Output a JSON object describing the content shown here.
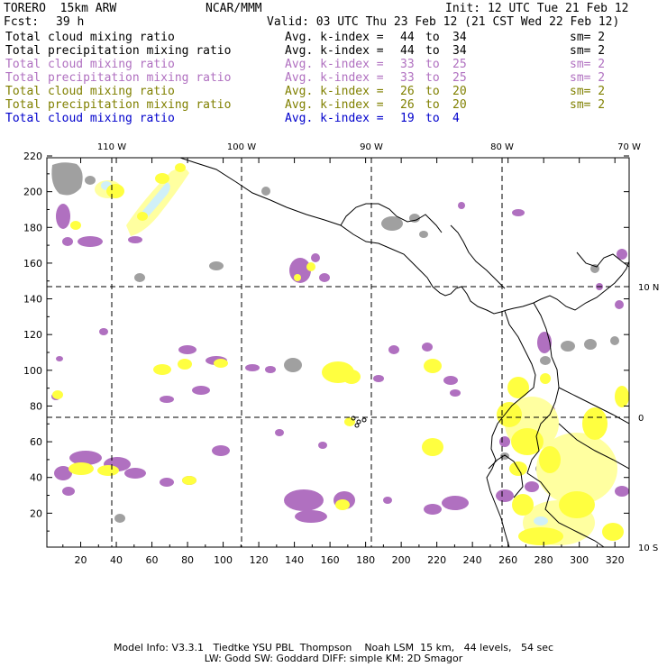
{
  "header": {
    "model": "TORERO  15km ARW",
    "center": "NCAR/MMM",
    "init": "Init: 12 UTC Tue 21 Feb 12",
    "fcst_label": "Fcst:",
    "fcst_value": "39 h",
    "valid": "Valid: 03 UTC Thu 23 Feb 12 (21 CST Wed 22 Feb 12)"
  },
  "legend": [
    {
      "name": "Total cloud mixing ratio",
      "avg": "Avg. k-index =",
      "from": "44",
      "to": "to",
      "end": "34",
      "sm": "sm= 2",
      "color": "#000000"
    },
    {
      "name": "Total precipitation mixing ratio",
      "avg": "Avg. k-index =",
      "from": "44",
      "to": "to",
      "end": "34",
      "sm": "sm= 2",
      "color": "#000000"
    },
    {
      "name": "Total cloud mixing ratio",
      "avg": "Avg. k-index =",
      "from": "33",
      "to": "to",
      "end": "25",
      "sm": "sm= 2",
      "color": "#b070c0"
    },
    {
      "name": "Total precipitation mixing ratio",
      "avg": "Avg. k-index =",
      "from": "33",
      "to": "to",
      "end": "25",
      "sm": "sm= 2",
      "color": "#b070c0"
    },
    {
      "name": "Total cloud mixing ratio",
      "avg": "Avg. k-index =",
      "from": "26",
      "to": "to",
      "end": "20",
      "sm": "sm= 2",
      "color": "#808000"
    },
    {
      "name": "Total precipitation mixing ratio",
      "avg": "Avg. k-index =",
      "from": "26",
      "to": "to",
      "end": "20",
      "sm": "sm= 2",
      "color": "#808000"
    },
    {
      "name": "Total cloud mixing ratio",
      "avg": "Avg. k-index =",
      "from": "19",
      "to": "to",
      "end": "4",
      "sm": "",
      "color": "#0000cc"
    }
  ],
  "map": {
    "lon_labels": [
      "110 W",
      "100 W",
      "90 W",
      "80 W",
      "70 W"
    ],
    "lat_labels": [
      "10 N",
      "0",
      "10 S"
    ],
    "x_ticks": [
      "20",
      "40",
      "60",
      "80",
      "100",
      "120",
      "140",
      "160",
      "180",
      "200",
      "220",
      "240",
      "260",
      "280",
      "300",
      "320"
    ],
    "y_ticks": [
      "20",
      "40",
      "60",
      "80",
      "100",
      "120",
      "140",
      "160",
      "180",
      "200",
      "220"
    ],
    "colors": {
      "gray": "#a0a0a0",
      "purple": "#b070c0",
      "yellow": "#ffff40",
      "lightyellow": "#ffffa0",
      "cyan": "#d0f0f8"
    }
  },
  "footer": {
    "line1": "Model Info: V3.3.1   Tiedtke YSU PBL  Thompson    Noah LSM  15 km,   44 levels,   54 sec",
    "line2": "LW: Godd SW: Goddard DIFF: simple KM: 2D Smagor"
  }
}
